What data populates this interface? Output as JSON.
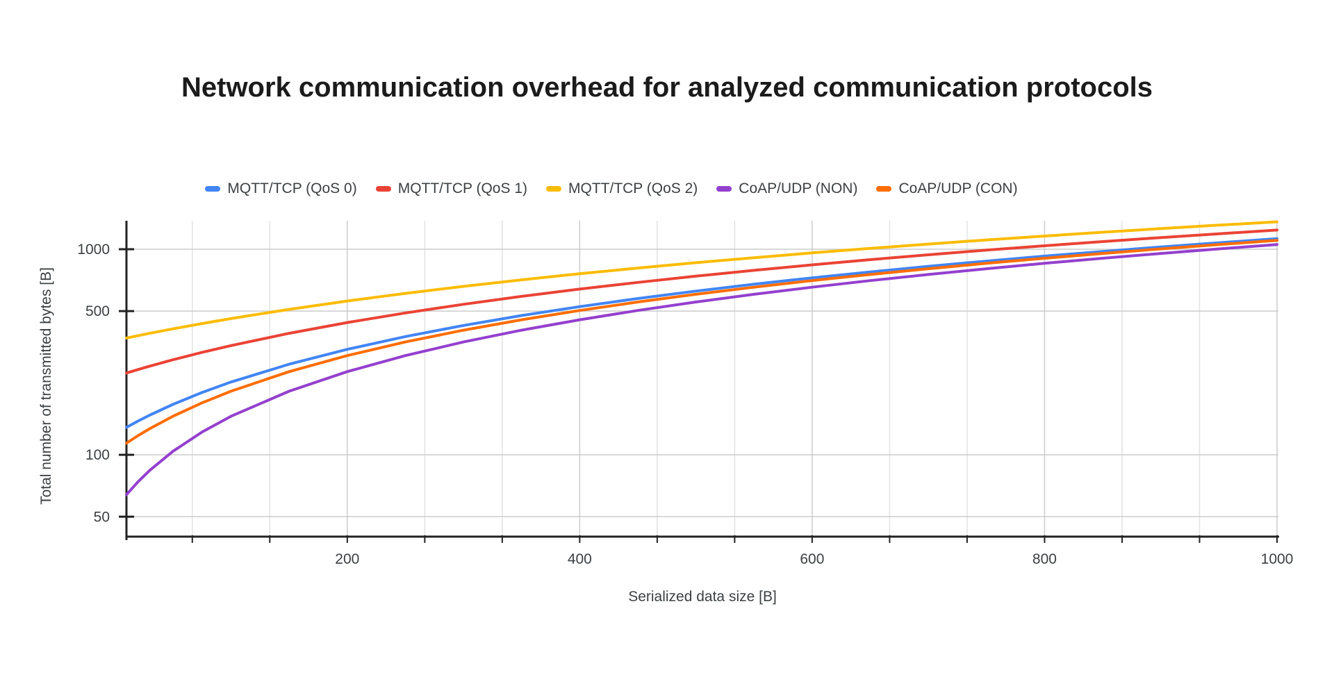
{
  "style": {
    "background": "#ffffff",
    "title_color": "#1b1b1b",
    "label_color": "#3c4043",
    "axis_color": "#222222",
    "grid_major": "#cccccc",
    "grid_minor": "#e2e2e2"
  },
  "chart_data": {
    "type": "line",
    "title": "Network communication overhead for analyzed communication protocols",
    "xlabel": "Serialized data size [B]",
    "ylabel": "Total number of transmitted bytes [B]",
    "x_scale": "linear",
    "y_scale": "log",
    "xlim": [
      10,
      1000
    ],
    "ylim": [
      40,
      1376
    ],
    "grid": true,
    "legend_position": "top",
    "x_tick_labels": [
      200,
      400,
      600,
      800,
      1000
    ],
    "x_tick_positions": [
      66.67,
      133.33,
      200,
      266.67,
      333.33,
      400,
      466.67,
      533.33,
      600,
      666.67,
      733.33,
      800,
      866.67,
      933.33,
      1000
    ],
    "y_tick_labels": [
      50,
      100,
      500,
      1000
    ],
    "x": [
      10,
      20,
      30,
      50,
      75,
      100,
      150,
      200,
      250,
      300,
      350,
      400,
      450,
      500,
      550,
      600,
      650,
      700,
      750,
      800,
      850,
      900,
      950,
      1000
    ],
    "series": [
      {
        "name": "MQTT/TCP (QoS 0)",
        "color": "#4285F4",
        "values": [
          136,
          146,
          156,
          176,
          201,
          226,
          276,
          326,
          376,
          426,
          476,
          526,
          576,
          626,
          676,
          726,
          776,
          826,
          876,
          926,
          976,
          1026,
          1076,
          1126
        ]
      },
      {
        "name": "MQTT/TCP (QoS 1)",
        "color": "#EA4335",
        "values": [
          250,
          260,
          270,
          290,
          315,
          340,
          390,
          440,
          490,
          540,
          590,
          640,
          690,
          740,
          790,
          840,
          890,
          940,
          990,
          1040,
          1090,
          1140,
          1190,
          1240
        ]
      },
      {
        "name": "MQTT/TCP (QoS 2)",
        "color": "#FBBC04",
        "values": [
          370,
          380,
          390,
          410,
          435,
          460,
          510,
          560,
          610,
          660,
          710,
          760,
          810,
          860,
          910,
          960,
          1010,
          1060,
          1110,
          1160,
          1210,
          1260,
          1310,
          1360
        ]
      },
      {
        "name": "CoAP/UDP (NON)",
        "color": "#9440CE",
        "values": [
          64,
          74,
          84,
          104,
          129,
          154,
          204,
          254,
          304,
          354,
          404,
          454,
          504,
          554,
          604,
          654,
          704,
          754,
          804,
          854,
          904,
          954,
          1004,
          1054
        ]
      },
      {
        "name": "CoAP/UDP (CON)",
        "color": "#FF6D01",
        "values": [
          114,
          124,
          134,
          154,
          179,
          204,
          254,
          304,
          354,
          404,
          454,
          504,
          554,
          604,
          654,
          704,
          754,
          804,
          854,
          904,
          954,
          1004,
          1054,
          1104
        ]
      }
    ]
  }
}
